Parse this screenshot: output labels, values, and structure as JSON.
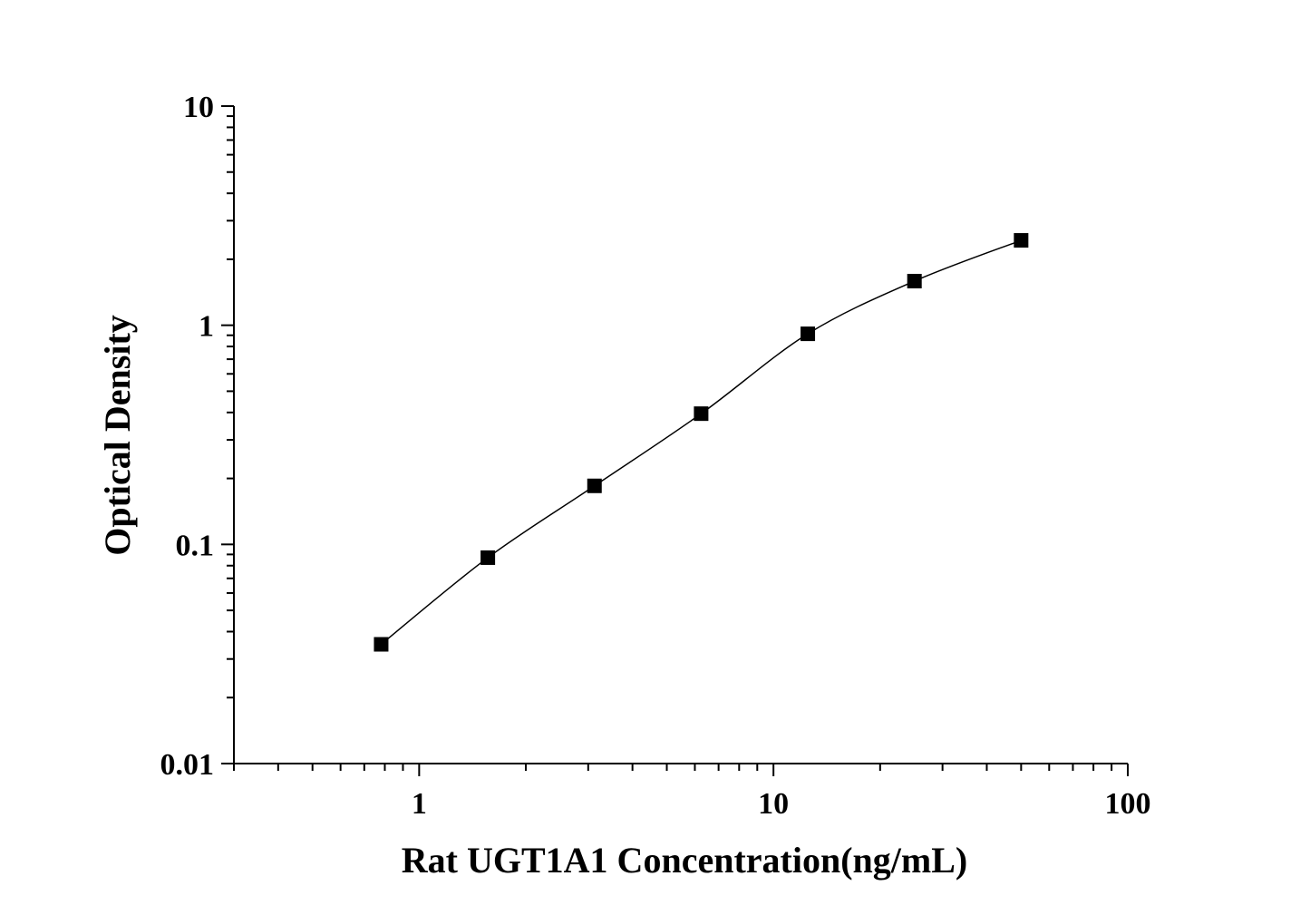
{
  "chart_data": {
    "type": "line",
    "title": "",
    "xlabel": "Rat UGT1A1 Concentration(ng/mL)",
    "ylabel": "Optical Density",
    "x_scale": "log",
    "y_scale": "log",
    "xlim": [
      0.3,
      100
    ],
    "ylim": [
      0.01,
      10
    ],
    "x_ticks": [
      1,
      10,
      100
    ],
    "x_tick_labels": [
      "1",
      "10",
      "100"
    ],
    "y_ticks": [
      0.01,
      0.1,
      1,
      10
    ],
    "y_tick_labels": [
      "0.01",
      "0.1",
      "1",
      "10"
    ],
    "grid": false,
    "legend": "none",
    "marker": "square",
    "color": "#000000",
    "series": [
      {
        "x": [
          0.78125,
          1.5625,
          3.125,
          6.25,
          12.5,
          25,
          50
        ],
        "y": [
          0.035,
          0.087,
          0.185,
          0.395,
          0.914,
          1.59,
          2.44
        ]
      }
    ]
  }
}
